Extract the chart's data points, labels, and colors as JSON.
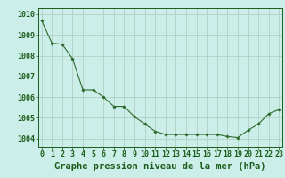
{
  "x": [
    0,
    1,
    2,
    3,
    4,
    5,
    6,
    7,
    8,
    9,
    10,
    11,
    12,
    13,
    14,
    15,
    16,
    17,
    18,
    19,
    20,
    21,
    22,
    23
  ],
  "y": [
    1009.7,
    1008.6,
    1008.55,
    1007.85,
    1006.35,
    1006.35,
    1006.0,
    1005.55,
    1005.55,
    1005.05,
    1004.7,
    1004.35,
    1004.2,
    1004.2,
    1004.2,
    1004.2,
    1004.2,
    1004.2,
    1004.1,
    1004.05,
    1004.4,
    1004.7,
    1005.2,
    1005.4
  ],
  "line_color": "#2d6a2d",
  "marker_color": "#2d6a2d",
  "bg_color": "#cceee8",
  "grid_color": "#b0c8c0",
  "ylim": [
    1003.6,
    1010.3
  ],
  "xlim": [
    -0.3,
    23.3
  ],
  "yticks": [
    1004,
    1005,
    1006,
    1007,
    1008,
    1009,
    1010
  ],
  "xlabel": "Graphe pression niveau de la mer (hPa)",
  "xlabel_fontsize": 7.5,
  "text_color": "#1a5c1a",
  "tick_fontsize": 6.0
}
